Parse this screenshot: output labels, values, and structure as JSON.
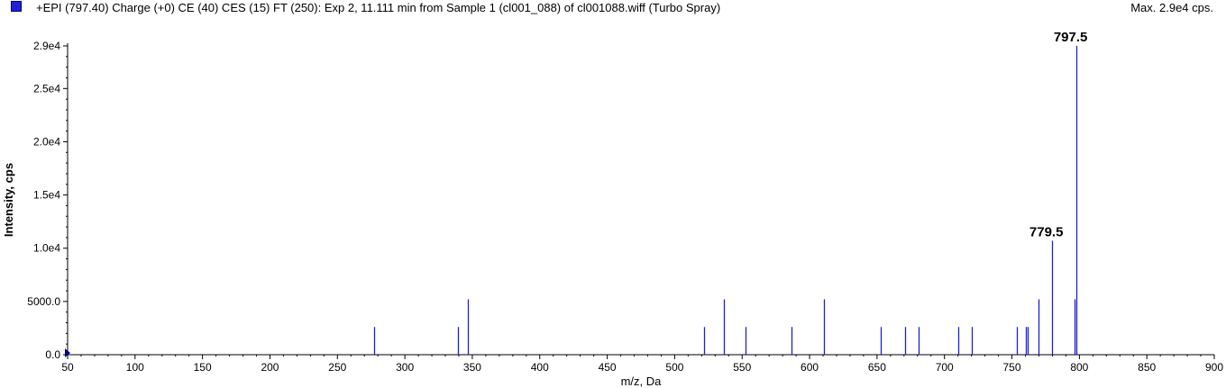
{
  "header": {
    "title": "+EPI (797.40) Charge (+0) CE (40) CES (15) FT (250): Exp 2, 11.111 min from Sample 1 (cl001_088) of cl001088.wiff (Turbo Spray)",
    "max_label": "Max. 2.9e4 cps.",
    "series_color": "#1f1fd6"
  },
  "chart_data": {
    "type": "bar",
    "xlabel": "m/z, Da",
    "ylabel": "Intensity, cps",
    "xlim": [
      50,
      900
    ],
    "ylim": [
      0,
      29000
    ],
    "x_ticks": [
      50,
      100,
      150,
      200,
      250,
      300,
      350,
      400,
      450,
      500,
      550,
      600,
      650,
      700,
      750,
      800,
      850,
      900
    ],
    "y_ticks": [
      {
        "value": 0,
        "label": "0.0"
      },
      {
        "value": 5000,
        "label": "5000.0"
      },
      {
        "value": 10000,
        "label": "1.0e4"
      },
      {
        "value": 15000,
        "label": "1.5e4"
      },
      {
        "value": 20000,
        "label": "2.0e4"
      },
      {
        "value": 25000,
        "label": "2.5e4"
      },
      {
        "value": 29000,
        "label": "2.9e4"
      }
    ],
    "peaks": [
      {
        "mz": 277.5,
        "intensity": 2600
      },
      {
        "mz": 339.5,
        "intensity": 2600
      },
      {
        "mz": 346.5,
        "intensity": 5200
      },
      {
        "mz": 521.5,
        "intensity": 2600
      },
      {
        "mz": 536.5,
        "intensity": 5200
      },
      {
        "mz": 552.5,
        "intensity": 2600
      },
      {
        "mz": 586.5,
        "intensity": 2600
      },
      {
        "mz": 610.5,
        "intensity": 5200
      },
      {
        "mz": 652.5,
        "intensity": 2600
      },
      {
        "mz": 670.5,
        "intensity": 2600
      },
      {
        "mz": 680.5,
        "intensity": 2600
      },
      {
        "mz": 710.5,
        "intensity": 2600
      },
      {
        "mz": 720.5,
        "intensity": 2600
      },
      {
        "mz": 753.5,
        "intensity": 2600
      },
      {
        "mz": 760.5,
        "intensity": 2600
      },
      {
        "mz": 761.5,
        "intensity": 2600
      },
      {
        "mz": 769.5,
        "intensity": 5200
      },
      {
        "mz": 779.5,
        "intensity": 10700
      },
      {
        "mz": 796.5,
        "intensity": 5200
      },
      {
        "mz": 797.5,
        "intensity": 29000
      }
    ],
    "annotations": [
      {
        "mz": 797.5,
        "text": "797.5"
      },
      {
        "mz": 779.5,
        "text": "779.5"
      }
    ]
  }
}
